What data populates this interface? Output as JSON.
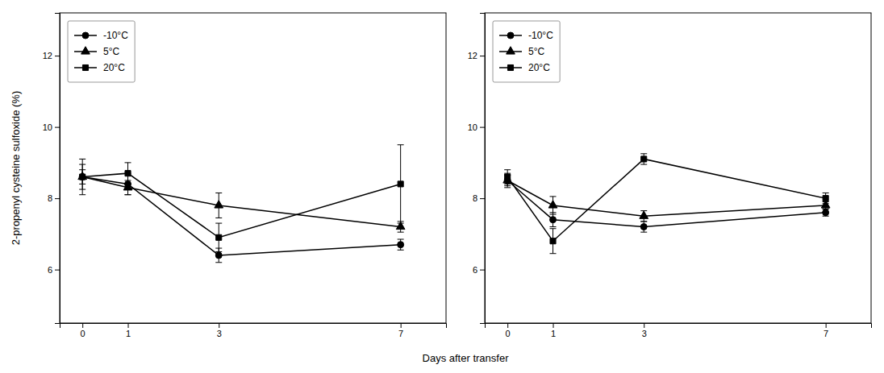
{
  "chart_data": [
    {
      "type": "line",
      "x": [
        0,
        1,
        3,
        7
      ],
      "xlabel": "Days after transfer",
      "ylabel": "2-propenyl cysteine sulfoxide (%)",
      "xlim": [
        -0.5,
        8.0
      ],
      "xticks": [
        0,
        1,
        3,
        7
      ],
      "ylim": [
        4.5,
        13.2
      ],
      "yticks": [
        6,
        8,
        10,
        12
      ],
      "grid": false,
      "legend": "upper left",
      "series": [
        {
          "name": "-10°C",
          "color": "#000000",
          "marker": "circle",
          "line_style": "solid",
          "values": [
            8.6,
            8.4,
            6.4,
            6.7
          ],
          "yerr": [
            0.35,
            0.3,
            0.2,
            0.15
          ]
        },
        {
          "name": "5°C",
          "color": "#000000",
          "marker": "triangle",
          "line_style": "solid",
          "values": [
            8.6,
            8.3,
            7.8,
            7.2
          ],
          "yerr": [
            0.2,
            0.2,
            0.35,
            0.15
          ]
        },
        {
          "name": "20°C",
          "color": "#000000",
          "marker": "square",
          "line_style": "solid",
          "values": [
            8.6,
            8.7,
            6.9,
            8.4
          ],
          "yerr": [
            0.5,
            0.3,
            0.4,
            1.1
          ]
        }
      ]
    },
    {
      "type": "line",
      "x": [
        0,
        1,
        3,
        7
      ],
      "xlim": [
        -0.5,
        8.0
      ],
      "xticks": [
        0,
        1,
        3,
        7
      ],
      "ylim": [
        4.5,
        13.2
      ],
      "yticks": [
        6,
        8,
        10,
        12
      ],
      "grid": false,
      "legend": "upper left",
      "series": [
        {
          "name": "-10°C",
          "color": "#000000",
          "marker": "circle",
          "line_style": "solid",
          "values": [
            8.5,
            7.4,
            7.2,
            7.6
          ],
          "yerr": [
            0.2,
            0.2,
            0.15,
            0.1
          ]
        },
        {
          "name": "5°C",
          "color": "#000000",
          "marker": "triangle",
          "line_style": "solid",
          "values": [
            8.5,
            7.8,
            7.5,
            7.8
          ],
          "yerr": [
            0.15,
            0.25,
            0.15,
            0.1
          ]
        },
        {
          "name": "20°C",
          "color": "#000000",
          "marker": "square",
          "line_style": "solid",
          "values": [
            8.6,
            6.8,
            9.1,
            8.0
          ],
          "yerr": [
            0.2,
            0.35,
            0.15,
            0.15
          ]
        }
      ]
    }
  ]
}
